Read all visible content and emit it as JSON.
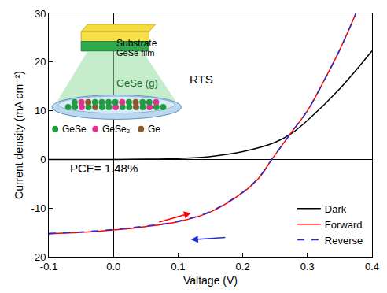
{
  "chart_data": {
    "type": "line",
    "x_label": "Valtage (V)",
    "y_label": "Current density (mA cm⁻²)",
    "xlim": [
      -0.1,
      0.4
    ],
    "xticks": [
      -0.1,
      {
        "value": 0,
        "label": "0.0"
      },
      0.1,
      0.2,
      0.3,
      0.4
    ],
    "ylim": [
      -20,
      30
    ],
    "yticks": [
      -20,
      -10,
      0,
      10,
      20,
      30
    ],
    "grid": false,
    "legend": "lower right",
    "series": [
      {
        "name": "Dark",
        "color": "#000000",
        "line_style": "solid",
        "x": [
          -0.1,
          -0.05,
          0,
          0.05,
          0.1,
          0.15,
          0.2,
          0.25,
          0.275,
          0.3,
          0.35,
          0.4
        ],
        "values": [
          0,
          0,
          0,
          0.05,
          0.2,
          0.6,
          1.6,
          3.5,
          5.3,
          8,
          14.5,
          22.3
        ]
      },
      {
        "name": "Forward",
        "color": "#ff0000",
        "line_style": "solid",
        "x": [
          -0.1,
          -0.05,
          0,
          0.05,
          0.1,
          0.15,
          0.2,
          0.225,
          0.245,
          0.275,
          0.3,
          0.325,
          0.35,
          0.375
        ],
        "values": [
          -15.3,
          -15.0,
          -14.5,
          -13.8,
          -12.8,
          -10.8,
          -6.8,
          -3.8,
          0,
          5.5,
          10,
          16,
          22.5,
          30
        ]
      },
      {
        "name": "Reverse",
        "color": "#1f2fd6",
        "line_style": "dashed",
        "x": [
          -0.1,
          -0.05,
          0,
          0.05,
          0.1,
          0.15,
          0.2,
          0.225,
          0.245,
          0.275,
          0.3,
          0.325,
          0.35,
          0.375
        ],
        "values": [
          -15.2,
          -14.9,
          -14.4,
          -13.7,
          -12.7,
          -10.7,
          -6.7,
          -3.7,
          0,
          5.5,
          10,
          16,
          22.5,
          30
        ]
      }
    ],
    "annotations": [
      "PCE= 1.48%"
    ],
    "inset": {
      "substrate": "Substrate",
      "film": "GeSe film",
      "vapor": "GeSe (g)",
      "method": "RTS",
      "species": [
        {
          "name": "GeSe",
          "color": "#1e9e3e"
        },
        {
          "name": "GeSe₂",
          "color": "#e0338c"
        },
        {
          "name": "Ge",
          "color": "#8b5a2b"
        }
      ]
    }
  }
}
